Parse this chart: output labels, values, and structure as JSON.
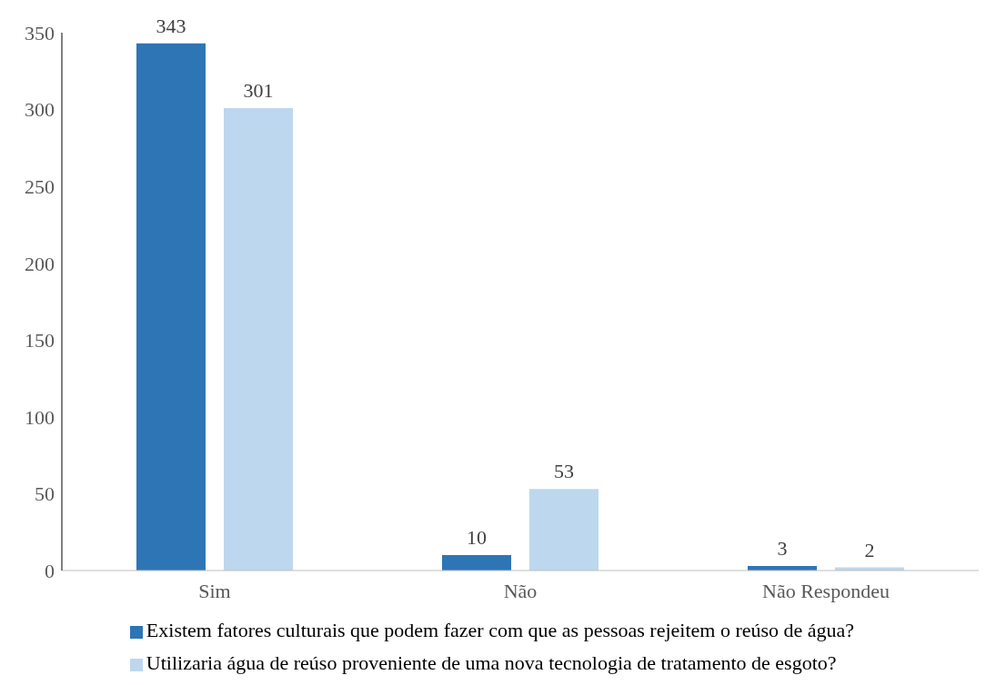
{
  "chart_data": {
    "type": "bar",
    "categories": [
      "Sim",
      "Não",
      "Não Respondeu"
    ],
    "series": [
      {
        "name": "Existem fatores culturais que podem fazer com que as pessoas rejeitem o reúso de água?",
        "color": "#2e75b6",
        "values": [
          343,
          10,
          3
        ]
      },
      {
        "name": "Utilizaria água de reúso proveniente de uma nova tecnologia de tratamento de esgoto?",
        "color": "#bdd7ee",
        "values": [
          301,
          53,
          2
        ]
      }
    ],
    "ylim": [
      0,
      350
    ],
    "yticks": [
      0,
      50,
      100,
      150,
      200,
      250,
      300,
      350
    ],
    "data_labels": true,
    "grid": false,
    "legend": "bottom"
  }
}
